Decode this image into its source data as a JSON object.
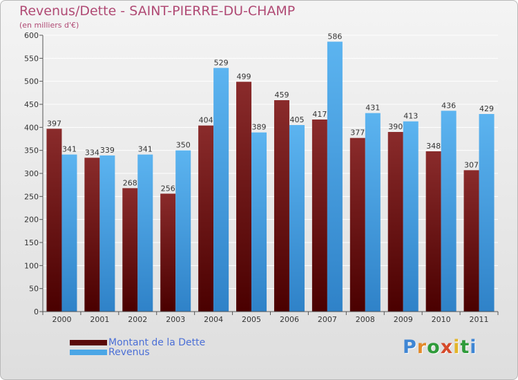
{
  "chart_data": {
    "type": "bar",
    "title": "Revenus/Dette - SAINT-PIERRE-DU-CHAMP",
    "subtitle": "(en milliers d'€)",
    "categories": [
      "2000",
      "2001",
      "2002",
      "2003",
      "2004",
      "2005",
      "2006",
      "2007",
      "2008",
      "2009",
      "2010",
      "2011"
    ],
    "series": [
      {
        "name": "Montant de la Dette",
        "color": "#7b1a1a",
        "values": [
          397,
          334,
          268,
          256,
          404,
          499,
          459,
          417,
          377,
          390,
          348,
          307
        ]
      },
      {
        "name": "Revenus",
        "color": "#4aa6e6",
        "values": [
          341,
          339,
          341,
          350,
          529,
          389,
          405,
          586,
          431,
          413,
          436,
          429
        ]
      }
    ],
    "ylim": [
      0,
      600
    ],
    "yticks": [
      "0",
      "50",
      "100",
      "150",
      "200",
      "250",
      "300",
      "350",
      "400",
      "450",
      "500",
      "550",
      "600"
    ],
    "grid": true,
    "legend_position": "bottom-left"
  },
  "logo": {
    "text": "Proxiti",
    "colors": [
      "#3f86d4",
      "#e38a2a",
      "#2f9b3a",
      "#d64a2a",
      "#e3b52a",
      "#2f9b3a",
      "#3f86d4"
    ]
  }
}
